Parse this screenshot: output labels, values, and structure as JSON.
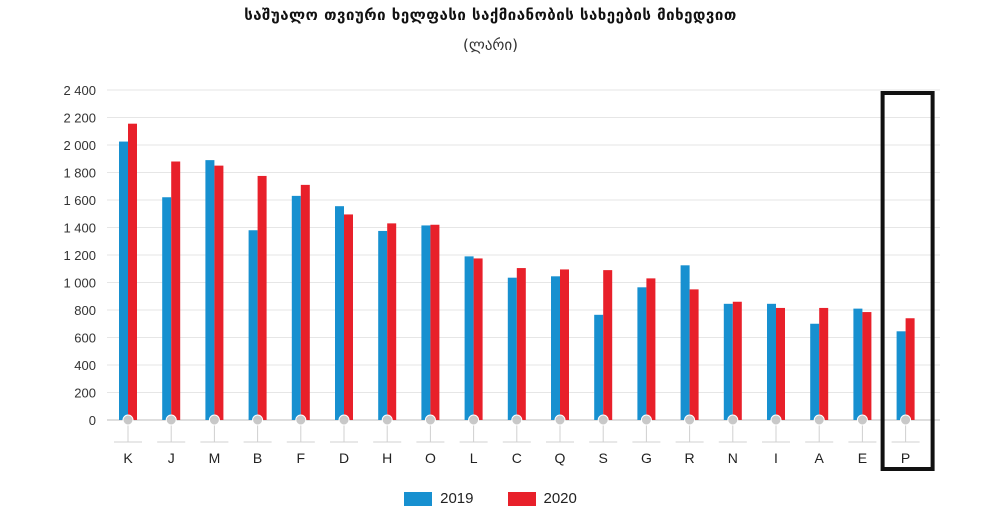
{
  "chart_data": {
    "type": "bar",
    "title": "საშუალო თვიური ხელფასი საქმიანობის სახეების მიხედვით",
    "subtitle": "(ლარი)",
    "categories": [
      "K",
      "J",
      "M",
      "B",
      "F",
      "D",
      "H",
      "O",
      "L",
      "C",
      "Q",
      "S",
      "G",
      "R",
      "N",
      "I",
      "A",
      "E",
      "P"
    ],
    "series": [
      {
        "name": "2019",
        "color": "#1790d0",
        "values": [
          2025,
          1620,
          1890,
          1380,
          1630,
          1555,
          1375,
          1415,
          1190,
          1035,
          1045,
          765,
          965,
          1125,
          845,
          845,
          700,
          810,
          645
        ]
      },
      {
        "name": "2020",
        "color": "#e8202a",
        "values": [
          2155,
          1880,
          1850,
          1775,
          1710,
          1495,
          1430,
          1420,
          1175,
          1105,
          1095,
          1090,
          1030,
          950,
          860,
          815,
          815,
          785,
          740
        ]
      }
    ],
    "ylim": [
      0,
      2400
    ],
    "yticks": [
      "0",
      "200",
      "400",
      "600",
      "800",
      "1 000",
      "1 200",
      "1 400",
      "1 600",
      "1 800",
      "2 000",
      "2 200",
      "2 400"
    ],
    "highlighted_category": "P",
    "grid": true,
    "legend_position": "bottom-center"
  }
}
